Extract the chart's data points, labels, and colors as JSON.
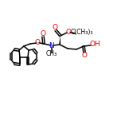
{
  "background_color": "#ffffff",
  "bond_color": "#000000",
  "oxygen_color": "#e00000",
  "nitrogen_color": "#0000dd",
  "figsize": [
    1.52,
    1.52
  ],
  "dpi": 100,
  "xlim": [
    0,
    152
  ],
  "ylim": [
    0,
    152
  ]
}
